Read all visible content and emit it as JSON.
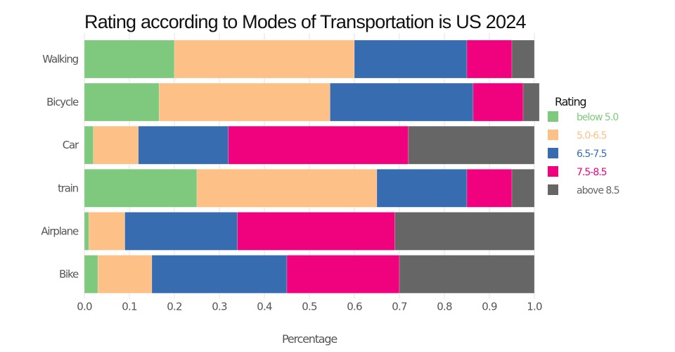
{
  "chart_data": {
    "type": "bar",
    "orientation": "horizontal",
    "stacked": true,
    "title": "Rating according to Modes of Transportation is US 2024",
    "xlabel": "Percentage",
    "ylabel": "",
    "xlim": [
      0.0,
      1.0
    ],
    "xticks": [
      "0.0",
      "0.1",
      "0.2",
      "0.3",
      "0.4",
      "0.5",
      "0.6",
      "0.7",
      "0.8",
      "0.9",
      "1.0"
    ],
    "grid": true,
    "categories": [
      "Walking",
      "Bicycle",
      "Car",
      "train",
      "Airplane",
      "Bike"
    ],
    "series": [
      {
        "name": "below 5.0",
        "color": "#7fc97f",
        "values": [
          0.2,
          0.166,
          0.02,
          0.25,
          0.01,
          0.03
        ]
      },
      {
        "name": "5.0-6.5",
        "color": "#fdc086",
        "values": [
          0.4,
          0.38,
          0.1,
          0.4,
          0.08,
          0.12
        ]
      },
      {
        "name": "6.5-7.5",
        "color": "#386cb0",
        "values": [
          0.25,
          0.318,
          0.2,
          0.2,
          0.25,
          0.3
        ]
      },
      {
        "name": "7.5-8.5",
        "color": "#f0027f",
        "values": [
          0.1,
          0.111,
          0.4,
          0.1,
          0.35,
          0.25
        ]
      },
      {
        "name": "above 8.5",
        "color": "#666666",
        "values": [
          0.05,
          0.036,
          0.28,
          0.05,
          0.31,
          0.3
        ]
      }
    ],
    "legend": {
      "title": "Rating",
      "position": "right"
    }
  }
}
